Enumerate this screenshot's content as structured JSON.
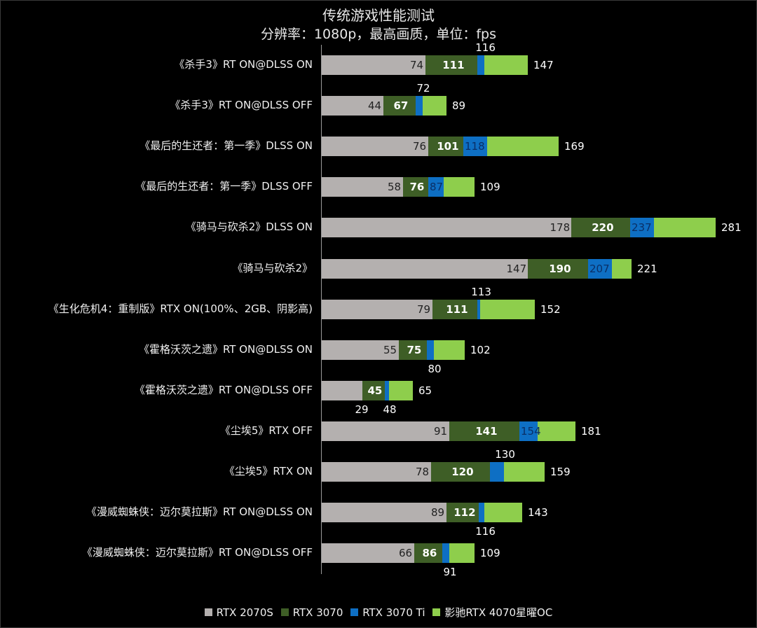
{
  "chart_data": {
    "type": "bar",
    "orientation": "horizontal",
    "overlap": true,
    "title": "传统游戏性能测试",
    "subtitle": "分辨率：1080p，最高画质，单位：fps",
    "xlabel": "",
    "ylabel": "",
    "xlim": [
      0,
      290
    ],
    "grid": false,
    "legend_position": "bottom",
    "categories": [
      "《杀手3》RT ON@DLSS ON",
      "《杀手3》RT ON@DLSS OFF",
      "《最后的生还者：第一季》DLSS ON",
      "《最后的生还者：第一季》DLSS OFF",
      "《骑马与砍杀2》DLSS ON",
      "《骑马与砍杀2》",
      "《生化危机4：重制版》RTX ON(100%、2GB、阴影高)",
      "《霍格沃茨之遗》RT ON@DLSS ON",
      "《霍格沃茨之遗》RT ON@DLSS OFF",
      "《尘埃5》RTX OFF",
      "《尘埃5》RTX ON",
      "《漫威蜘蛛侠：迈尔莫拉斯》RT ON@DLSS ON",
      "《漫威蜘蛛侠：迈尔莫拉斯》RT ON@DLSS OFF"
    ],
    "series": [
      {
        "name": "RTX 2070S",
        "color": "#b4b0af",
        "values": [
          74,
          44,
          76,
          58,
          178,
          147,
          79,
          55,
          29,
          91,
          78,
          89,
          66
        ]
      },
      {
        "name": "RTX 3070",
        "color": "#3e5e26",
        "values": [
          111,
          67,
          101,
          76,
          220,
          190,
          111,
          75,
          45,
          141,
          120,
          112,
          86
        ]
      },
      {
        "name": "RTX 3070 Ti",
        "color": "#0e6fc4",
        "values": [
          116,
          72,
          118,
          87,
          237,
          207,
          113,
          80,
          48,
          154,
          130,
          116,
          91
        ]
      },
      {
        "name": "影驰RTX 4070星曜OC",
        "color": "#8ece4c",
        "values": [
          147,
          89,
          169,
          109,
          281,
          221,
          152,
          102,
          65,
          181,
          159,
          143,
          109
        ]
      }
    ]
  },
  "ti_label_pos": [
    "above",
    "above",
    "inside",
    "inside",
    "inside",
    "inside",
    "above",
    "below",
    "below",
    "inside",
    "above",
    "below",
    "below"
  ],
  "s1_label_pos": [
    "inside",
    "inside",
    "inside",
    "inside",
    "inside",
    "inside",
    "inside",
    "inside",
    "below",
    "inside",
    "inside",
    "inside",
    "inside"
  ]
}
